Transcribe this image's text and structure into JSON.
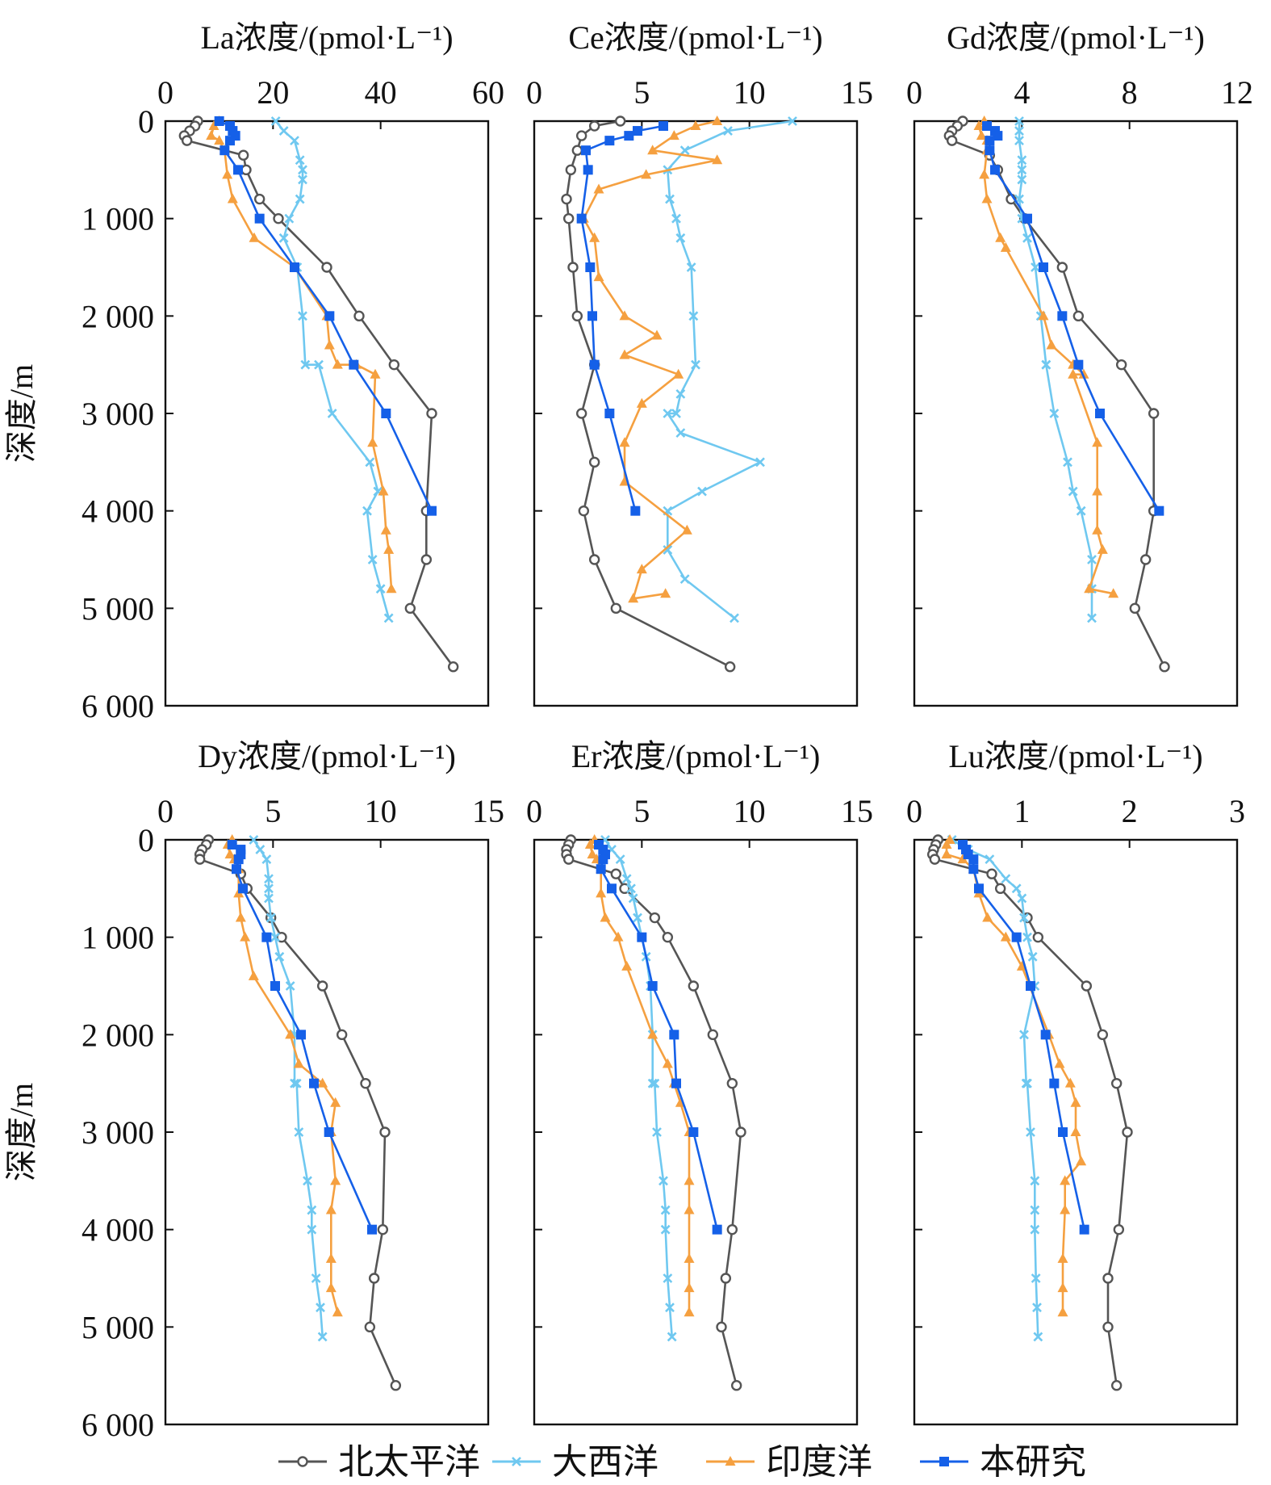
{
  "chart_data": [
    {
      "type": "line",
      "element": "La",
      "title": "La浓度/(pmol·L⁻¹)",
      "xlim": [
        0,
        60
      ],
      "xticks": [
        0,
        20,
        40,
        60
      ],
      "ylim": [
        0,
        6000
      ],
      "yticks": [
        0,
        1000,
        2000,
        3000,
        4000,
        5000,
        6000
      ],
      "ytick_labels": [
        "0",
        "1 000",
        "2 000",
        "3 000",
        "4 000",
        "5 000",
        "6 000"
      ],
      "ylabel": "深度/m",
      "series": [
        {
          "name": "北太平洋",
          "x": [
            6,
            5.5,
            4.5,
            3.5,
            4,
            14.5,
            15,
            17.5,
            21,
            30,
            36,
            42.5,
            49.5,
            48.5,
            48.5,
            45.5,
            53.5
          ],
          "y": [
            0,
            50,
            100,
            150,
            200,
            350,
            500,
            800,
            1000,
            1500,
            2000,
            2500,
            3000,
            4000,
            4500,
            5000,
            5600
          ]
        },
        {
          "name": "大西洋",
          "x": [
            20.5,
            22,
            24,
            25,
            25.5,
            25.5,
            25,
            23,
            22,
            24.5,
            25.5,
            26,
            28.5,
            31,
            38,
            39.5,
            37.5,
            38.5,
            40,
            41.5
          ],
          "y": [
            0,
            100,
            200,
            400,
            500,
            600,
            800,
            1000,
            1200,
            1500,
            2000,
            2500,
            2500,
            3000,
            3500,
            3800,
            4000,
            4500,
            4800,
            5100
          ]
        },
        {
          "name": "印度洋",
          "x": [
            10,
            9,
            8.5,
            10,
            11,
            11.5,
            12.5,
            16.5,
            24,
            30,
            30.5,
            32,
            35.5,
            39,
            38.5,
            40.5,
            41,
            41.5,
            42
          ],
          "y": [
            0,
            50,
            150,
            200,
            300,
            550,
            800,
            1200,
            1500,
            2000,
            2300,
            2500,
            2500,
            2600,
            3300,
            3800,
            4200,
            4400,
            4800
          ]
        },
        {
          "name": "本研究",
          "x": [
            10,
            12,
            12.5,
            13,
            12,
            11,
            13.5,
            17.5,
            24,
            30.5,
            35,
            41,
            49.5
          ],
          "y": [
            0,
            50,
            100,
            150,
            200,
            300,
            500,
            1000,
            1500,
            2000,
            2500,
            3000,
            4000
          ]
        }
      ]
    },
    {
      "type": "line",
      "element": "Ce",
      "title": "Ce浓度/(pmol·L⁻¹)",
      "xlim": [
        0,
        15
      ],
      "xticks": [
        0,
        5,
        10,
        15
      ],
      "ylim": [
        0,
        6000
      ],
      "yticks": [
        0,
        1000,
        2000,
        3000,
        4000,
        5000,
        6000
      ],
      "series": [
        {
          "name": "北太平洋",
          "x": [
            4,
            2.8,
            2.2,
            2,
            1.7,
            1.5,
            1.6,
            1.8,
            2,
            2.8,
            2.2,
            2.8,
            2.3,
            2.8,
            3.8,
            9.1
          ],
          "y": [
            0,
            50,
            150,
            300,
            500,
            800,
            1000,
            1500,
            2000,
            2500,
            3000,
            3500,
            4000,
            4500,
            5000,
            5600
          ]
        },
        {
          "name": "大西洋",
          "x": [
            12,
            9,
            7,
            6.2,
            6.3,
            6.6,
            6.8,
            7.3,
            7.4,
            7.5,
            6.8,
            6.6,
            6.2,
            6.8,
            10.5,
            7.8,
            6.2,
            6.2,
            7,
            9.3
          ],
          "y": [
            0,
            100,
            300,
            500,
            800,
            1000,
            1200,
            1500,
            2000,
            2500,
            2800,
            3000,
            3000,
            3200,
            3500,
            3800,
            4000,
            4400,
            4700,
            5100
          ]
        },
        {
          "name": "印度洋",
          "x": [
            8.5,
            7.5,
            6.5,
            5.5,
            8.5,
            5.2,
            3,
            2.3,
            2.8,
            3,
            4.2,
            5.7,
            4.2,
            6.7,
            5,
            4.2,
            4.2,
            7.1,
            5,
            4.6,
            6.1
          ],
          "y": [
            0,
            50,
            150,
            300,
            400,
            550,
            700,
            1000,
            1200,
            1600,
            2000,
            2200,
            2400,
            2600,
            2900,
            3300,
            3700,
            4200,
            4600,
            4900,
            4850
          ]
        },
        {
          "name": "本研究",
          "x": [
            6,
            4.8,
            4.4,
            3.5,
            2.4,
            2.5,
            2.2,
            2.6,
            2.7,
            2.8,
            3.5,
            4.7
          ],
          "y": [
            50,
            100,
            150,
            200,
            300,
            500,
            1000,
            1500,
            2000,
            2500,
            3000,
            4000
          ]
        }
      ]
    },
    {
      "type": "line",
      "element": "Gd",
      "title": "Gd浓度/(pmol·L⁻¹)",
      "xlim": [
        0,
        12
      ],
      "xticks": [
        0,
        4,
        8,
        12
      ],
      "ylim": [
        0,
        6000
      ],
      "yticks": [
        0,
        1000,
        2000,
        3000,
        4000,
        5000,
        6000
      ],
      "series": [
        {
          "name": "北太平洋",
          "x": [
            1.8,
            1.6,
            1.4,
            1.3,
            1.4,
            2.8,
            3.1,
            3.6,
            4.1,
            5.5,
            6.1,
            7.7,
            8.9,
            8.9,
            8.6,
            8.2,
            9.3
          ],
          "y": [
            0,
            50,
            100,
            150,
            200,
            350,
            500,
            800,
            1000,
            1500,
            2000,
            2500,
            3000,
            4000,
            4500,
            5000,
            5600
          ]
        },
        {
          "name": "大西洋",
          "x": [
            3.9,
            3.9,
            3.9,
            4,
            4,
            4,
            3.9,
            4,
            4.2,
            4.5,
            4.7,
            4.9,
            4.9,
            5.2,
            5.7,
            5.9,
            6.2,
            6.6,
            6.6,
            6.6
          ],
          "y": [
            0,
            100,
            200,
            400,
            500,
            600,
            800,
            1000,
            1200,
            1500,
            2000,
            2500,
            2500,
            3000,
            3500,
            3800,
            4000,
            4500,
            4800,
            5100
          ]
        },
        {
          "name": "印度洋",
          "x": [
            2.6,
            2.4,
            2.5,
            2.7,
            2.7,
            2.6,
            2.7,
            3.2,
            3.4,
            4.8,
            5.1,
            5.9,
            6.3,
            5.9,
            6.8,
            6.8,
            6.8,
            7.0,
            6.5,
            7.4
          ],
          "y": [
            0,
            50,
            150,
            200,
            300,
            550,
            800,
            1200,
            1300,
            2000,
            2300,
            2500,
            2600,
            2600,
            3300,
            3800,
            4200,
            4400,
            4800,
            4850
          ]
        },
        {
          "name": "本研究",
          "x": [
            2.7,
            3.0,
            3.1,
            2.8,
            2.8,
            3.0,
            4.2,
            4.8,
            5.5,
            6.1,
            6.9,
            9.1
          ],
          "y": [
            50,
            100,
            150,
            200,
            300,
            500,
            1000,
            1500,
            2000,
            2500,
            3000,
            4000
          ]
        }
      ]
    },
    {
      "type": "line",
      "element": "Dy",
      "title": "Dy浓度/(pmol·L⁻¹)",
      "xlim": [
        0,
        15
      ],
      "xticks": [
        0,
        5,
        10,
        15
      ],
      "ylim": [
        0,
        6000
      ],
      "yticks": [
        0,
        1000,
        2000,
        3000,
        4000,
        5000,
        6000
      ],
      "ytick_labels": [
        "0",
        "1 000",
        "2 000",
        "3 000",
        "4 000",
        "5 000",
        "6 000"
      ],
      "ylabel": "深度/m",
      "series": [
        {
          "name": "北太平洋",
          "x": [
            2,
            1.9,
            1.7,
            1.6,
            1.6,
            3.5,
            3.8,
            4.9,
            5.4,
            7.3,
            8.2,
            9.3,
            10.2,
            10.1,
            9.7,
            9.5,
            10.7
          ],
          "y": [
            0,
            50,
            100,
            150,
            200,
            350,
            500,
            800,
            1000,
            1500,
            2000,
            2500,
            3000,
            4000,
            4500,
            5000,
            5600
          ]
        },
        {
          "name": "大西洋",
          "x": [
            4.1,
            4.4,
            4.7,
            4.8,
            4.8,
            4.8,
            4.9,
            5.1,
            5.3,
            5.8,
            6,
            6,
            6.1,
            6.2,
            6.6,
            6.8,
            6.8,
            7,
            7.2,
            7.3
          ],
          "y": [
            0,
            100,
            200,
            400,
            500,
            600,
            800,
            1000,
            1200,
            1500,
            2000,
            2500,
            2500,
            3000,
            3500,
            3800,
            4000,
            4500,
            4800,
            5100
          ]
        },
        {
          "name": "印度洋",
          "x": [
            3.1,
            2.9,
            3,
            3.2,
            3.4,
            3.4,
            3.5,
            3.7,
            4.1,
            5.8,
            6.2,
            7.3,
            7.9,
            7.7,
            7.9,
            7.7,
            7.7,
            7.7,
            8
          ],
          "y": [
            0,
            50,
            150,
            200,
            300,
            550,
            800,
            1000,
            1400,
            2000,
            2300,
            2500,
            2700,
            3000,
            3500,
            3800,
            4300,
            4600,
            4850
          ]
        },
        {
          "name": "本研究",
          "x": [
            3.1,
            3.5,
            3.5,
            3.4,
            3.3,
            3.6,
            4.7,
            5.1,
            6.3,
            6.9,
            7.6,
            9.6
          ],
          "y": [
            50,
            100,
            150,
            200,
            300,
            500,
            1000,
            1500,
            2000,
            2500,
            3000,
            4000
          ]
        }
      ]
    },
    {
      "type": "line",
      "element": "Er",
      "title": "Er浓度/(pmol·L⁻¹)",
      "xlim": [
        0,
        15
      ],
      "xticks": [
        0,
        5,
        10,
        15
      ],
      "ylim": [
        0,
        6000
      ],
      "yticks": [
        0,
        1000,
        2000,
        3000,
        4000,
        5000,
        6000
      ],
      "series": [
        {
          "name": "北太平洋",
          "x": [
            1.7,
            1.6,
            1.5,
            1.5,
            1.6,
            3.8,
            4.2,
            5.6,
            6.2,
            7.4,
            8.3,
            9.2,
            9.6,
            9.2,
            8.9,
            8.7,
            9.4
          ],
          "y": [
            0,
            50,
            100,
            150,
            200,
            350,
            500,
            800,
            1000,
            1500,
            2000,
            2500,
            3000,
            4000,
            4500,
            5000,
            5600
          ]
        },
        {
          "name": "大西洋",
          "x": [
            3.3,
            3.6,
            4,
            4.3,
            4.5,
            4.6,
            4.8,
            5,
            5.2,
            5.4,
            5.5,
            5.5,
            5.6,
            5.7,
            6,
            6.1,
            6.1,
            6.2,
            6.3,
            6.4
          ],
          "y": [
            0,
            100,
            200,
            400,
            500,
            600,
            800,
            1000,
            1200,
            1500,
            2000,
            2500,
            2500,
            3000,
            3500,
            3800,
            4000,
            4500,
            4800,
            5100
          ]
        },
        {
          "name": "印度洋",
          "x": [
            2.8,
            2.6,
            2.7,
            2.9,
            3.1,
            3.1,
            3.3,
            3.9,
            4.3,
            5.5,
            6.2,
            6.5,
            6.8,
            7.2,
            7.2,
            7.2,
            7.2,
            7.2,
            7.2
          ],
          "y": [
            0,
            50,
            150,
            200,
            300,
            550,
            800,
            1000,
            1300,
            2000,
            2300,
            2500,
            2700,
            3000,
            3500,
            3800,
            4300,
            4600,
            4850
          ]
        },
        {
          "name": "本研究",
          "x": [
            3,
            3.2,
            3.3,
            3.2,
            3.1,
            3.6,
            5,
            5.5,
            6.5,
            6.6,
            7.4,
            8.5
          ],
          "y": [
            50,
            100,
            150,
            200,
            300,
            500,
            1000,
            1500,
            2000,
            2500,
            3000,
            4000
          ]
        }
      ]
    },
    {
      "type": "line",
      "element": "Lu",
      "title": "Lu浓度/(pmol·L⁻¹)",
      "xlim": [
        0,
        3
      ],
      "xticks": [
        0,
        1,
        2,
        3
      ],
      "ylim": [
        0,
        6000
      ],
      "yticks": [
        0,
        1000,
        2000,
        3000,
        4000,
        5000,
        6000
      ],
      "series": [
        {
          "name": "北太平洋",
          "x": [
            0.22,
            0.2,
            0.18,
            0.17,
            0.19,
            0.72,
            0.8,
            1.05,
            1.15,
            1.6,
            1.75,
            1.88,
            1.98,
            1.9,
            1.8,
            1.8,
            1.88
          ],
          "y": [
            0,
            50,
            100,
            150,
            200,
            350,
            500,
            800,
            1000,
            1500,
            2000,
            2500,
            3000,
            4000,
            4500,
            5000,
            5600
          ]
        },
        {
          "name": "大西洋",
          "x": [
            0.35,
            0.5,
            0.7,
            0.85,
            0.95,
            1.0,
            1.02,
            1.05,
            1.1,
            1.12,
            1.02,
            1.04,
            1.05,
            1.08,
            1.12,
            1.12,
            1.12,
            1.13,
            1.14,
            1.15
          ],
          "y": [
            0,
            100,
            200,
            400,
            500,
            600,
            800,
            1000,
            1200,
            1500,
            2000,
            2500,
            2500,
            3000,
            3500,
            3800,
            4000,
            4500,
            4800,
            5100
          ]
        },
        {
          "name": "印度洋",
          "x": [
            0.33,
            0.3,
            0.3,
            0.45,
            0.55,
            0.6,
            0.68,
            0.85,
            1.0,
            1.25,
            1.35,
            1.45,
            1.5,
            1.5,
            1.55,
            1.4,
            1.4,
            1.38,
            1.38,
            1.38
          ],
          "y": [
            0,
            50,
            150,
            200,
            300,
            550,
            800,
            1000,
            1300,
            2000,
            2300,
            2500,
            2700,
            3000,
            3300,
            3500,
            3800,
            4300,
            4600,
            4850
          ]
        },
        {
          "name": "本研究",
          "x": [
            0.45,
            0.48,
            0.5,
            0.55,
            0.55,
            0.6,
            0.95,
            1.08,
            1.22,
            1.3,
            1.38,
            1.58
          ],
          "y": [
            50,
            100,
            150,
            200,
            300,
            500,
            1000,
            1500,
            2000,
            2500,
            3000,
            4000
          ]
        }
      ]
    }
  ],
  "legend": {
    "items": [
      {
        "label": "北太平洋",
        "color": "#555555",
        "marker": "circle"
      },
      {
        "label": "大西洋",
        "color": "#6fc8f0",
        "marker": "x"
      },
      {
        "label": "印度洋",
        "color": "#f5a040",
        "marker": "triangle"
      },
      {
        "label": "本研究",
        "color": "#1560e8",
        "marker": "square"
      }
    ]
  }
}
